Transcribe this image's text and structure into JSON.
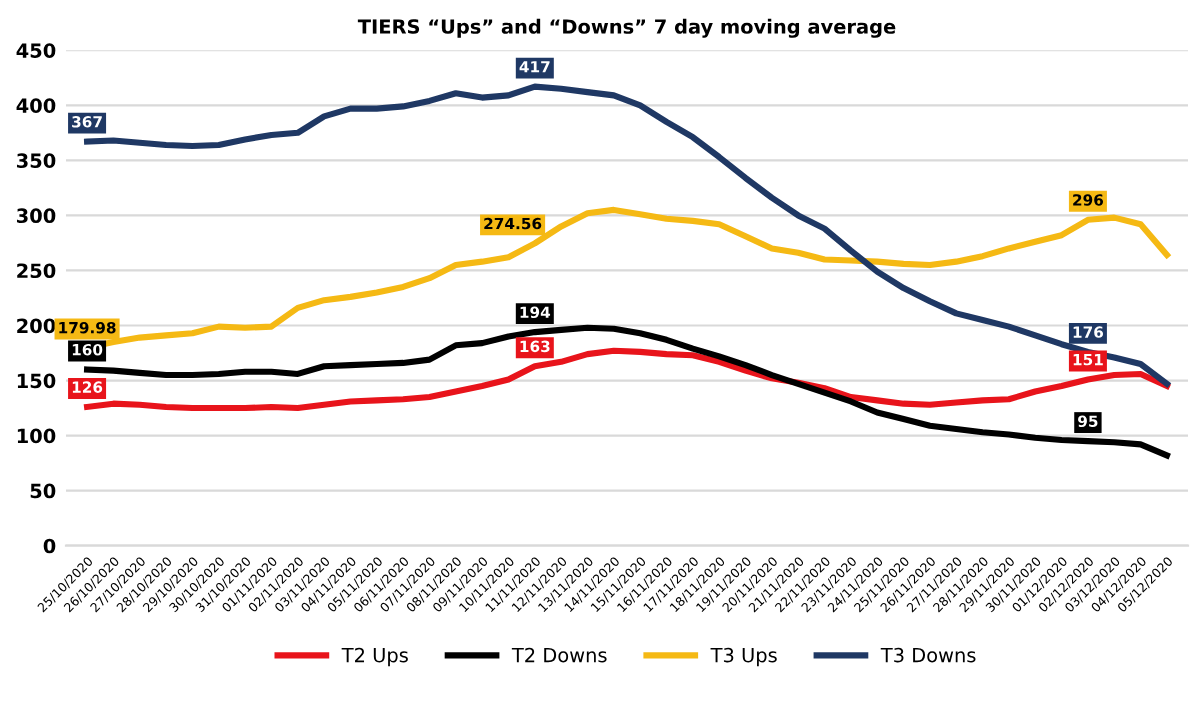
{
  "chart_data": {
    "type": "line",
    "title": "TIERS “Ups” and “Downs” 7 day moving average",
    "categories": [
      "25/10/2020",
      "26/10/2020",
      "27/10/2020",
      "28/10/2020",
      "29/10/2020",
      "30/10/2020",
      "31/10/2020",
      "01/11/2020",
      "02/11/2020",
      "03/11/2020",
      "04/11/2020",
      "05/11/2020",
      "06/11/2020",
      "07/11/2020",
      "08/11/2020",
      "09/11/2020",
      "10/11/2020",
      "11/11/2020",
      "12/11/2020",
      "13/11/2020",
      "14/11/2020",
      "15/11/2020",
      "16/11/2020",
      "17/11/2020",
      "18/11/2020",
      "19/11/2020",
      "20/11/2020",
      "21/11/2020",
      "22/11/2020",
      "23/11/2020",
      "24/11/2020",
      "25/11/2020",
      "26/11/2020",
      "27/11/2020",
      "28/11/2020",
      "29/11/2020",
      "30/11/2020",
      "01/12/2020",
      "02/12/2020",
      "03/12/2020",
      "04/12/2020",
      "05/12/2020"
    ],
    "series": [
      {
        "name": "T2 Ups",
        "color": "#e8141b",
        "values": [
          126,
          129,
          128,
          126,
          125,
          125,
          125,
          126,
          125,
          128,
          131,
          132,
          133,
          135,
          140,
          145,
          151,
          163,
          167,
          174,
          177,
          176,
          174,
          173,
          167,
          159,
          152,
          148,
          143,
          135,
          132,
          129,
          128,
          130,
          132,
          133,
          140,
          145,
          151,
          155,
          156,
          145
        ],
        "value_labels": [
          "126",
          null,
          null,
          null,
          null,
          null,
          null,
          null,
          null,
          null,
          null,
          null,
          null,
          null,
          null,
          null,
          null,
          "163",
          null,
          null,
          null,
          null,
          null,
          null,
          null,
          null,
          null,
          null,
          null,
          null,
          null,
          null,
          null,
          null,
          null,
          null,
          null,
          null,
          "151",
          null,
          null,
          null
        ]
      },
      {
        "name": "T2 Downs",
        "color": "#000000",
        "values": [
          160,
          159,
          157,
          155,
          155,
          156,
          158,
          158,
          156,
          163,
          164,
          165,
          166,
          169,
          182,
          184,
          190,
          194,
          196,
          198,
          197,
          193,
          187,
          179,
          172,
          164,
          155,
          147,
          139,
          131,
          121,
          115,
          109,
          106,
          103,
          101,
          98,
          96,
          95,
          94,
          92,
          82
        ],
        "value_labels": [
          "160",
          null,
          null,
          null,
          null,
          null,
          null,
          null,
          null,
          null,
          null,
          null,
          null,
          null,
          null,
          null,
          null,
          "194",
          null,
          null,
          null,
          null,
          null,
          null,
          null,
          null,
          null,
          null,
          null,
          null,
          null,
          null,
          null,
          null,
          null,
          null,
          null,
          null,
          "95",
          null,
          null,
          null
        ]
      },
      {
        "name": "T3 Ups",
        "color": "#f5b914",
        "values": [
          179.98,
          185,
          189,
          191,
          193,
          199,
          198,
          199,
          216,
          223,
          226,
          230,
          235,
          243,
          255,
          258,
          262,
          274.56,
          290,
          302,
          305,
          301,
          297,
          295,
          292,
          281,
          270,
          266,
          260,
          259,
          258,
          256,
          255,
          258,
          263,
          270,
          276,
          282,
          296,
          298,
          292,
          264
        ],
        "value_labels": [
          "179.98",
          null,
          null,
          null,
          null,
          null,
          null,
          null,
          null,
          null,
          null,
          null,
          null,
          null,
          null,
          null,
          null,
          "274.56",
          null,
          null,
          null,
          null,
          null,
          null,
          null,
          null,
          null,
          null,
          null,
          null,
          null,
          null,
          null,
          null,
          null,
          null,
          null,
          null,
          "296",
          null,
          null,
          null
        ]
      },
      {
        "name": "T3 Downs",
        "color": "#1f3864",
        "values": [
          367,
          368,
          366,
          364,
          363,
          364,
          369,
          373,
          375,
          390,
          397,
          397,
          399,
          404,
          411,
          407,
          409,
          417,
          415,
          412,
          409,
          400,
          385,
          371,
          353,
          334,
          316,
          300,
          288,
          268,
          249,
          234,
          222,
          211,
          205,
          199,
          191,
          183,
          176,
          171,
          165,
          147
        ],
        "value_labels": [
          "367",
          null,
          null,
          null,
          null,
          null,
          null,
          null,
          null,
          null,
          null,
          null,
          null,
          null,
          null,
          null,
          null,
          "417",
          null,
          null,
          null,
          null,
          null,
          null,
          null,
          null,
          null,
          null,
          null,
          null,
          null,
          null,
          null,
          null,
          null,
          null,
          null,
          null,
          "176",
          null,
          null,
          null
        ]
      }
    ],
    "ylim": [
      0,
      450
    ],
    "yticks": [
      0,
      50,
      100,
      150,
      200,
      250,
      300,
      350,
      400,
      450
    ],
    "grid": "y",
    "legend": "bottom"
  }
}
